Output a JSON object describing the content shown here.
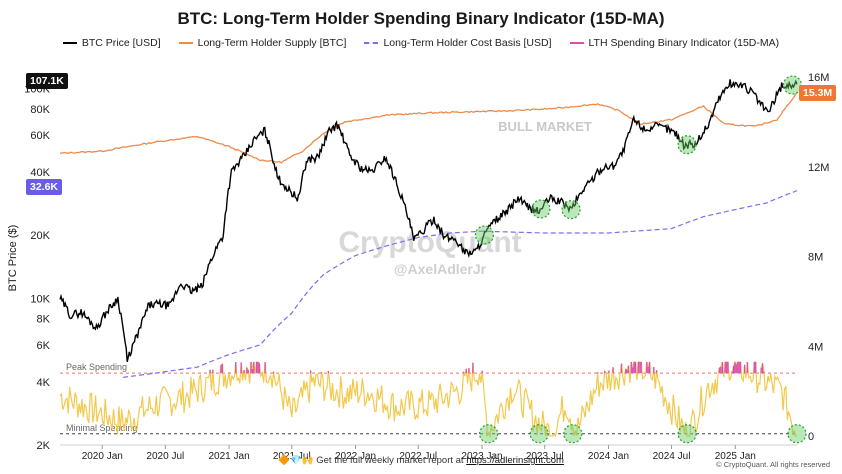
{
  "title": "BTC: Long-Term Holder Spending Binary Indicator (15D-MA)",
  "footer": {
    "emoji": "🔶💎🙌",
    "text": "Get the full weekly market report at",
    "link": "https://adlerinsight.com",
    "copyright": "© CryptoQuant. All rights reserved"
  },
  "watermark": {
    "brand": "CryptoQuant",
    "handle": "@AxelAdlerJr"
  },
  "colors": {
    "price": "#000000",
    "supply": "#ee8a4a",
    "cost_basis": "#7a6ff0",
    "binary": "#f2c94c",
    "binary_peak": "#d94fb0",
    "peak_line": "#e8736b",
    "min_line": "#444444",
    "highlight": "#66cc66",
    "badge_price": "#111111",
    "badge_cost": "#6b5ce7",
    "badge_supply": "#ee7733"
  },
  "chart_data": {
    "type": "line",
    "title": "BTC: Long-Term Holder Spending Binary Indicator (15D-MA)",
    "ylabel": "BTC Price ($)",
    "y_scale": "log",
    "ylim": [
      2000,
      120000
    ],
    "y_ticks": [
      {
        "v": 2000,
        "label": "2K"
      },
      {
        "v": 4000,
        "label": "4K"
      },
      {
        "v": 6000,
        "label": "6K"
      },
      {
        "v": 8000,
        "label": "8K"
      },
      {
        "v": 10000,
        "label": "10K"
      },
      {
        "v": 20000,
        "label": "20K"
      },
      {
        "v": 40000,
        "label": "40K"
      },
      {
        "v": 60000,
        "label": "60K"
      },
      {
        "v": 80000,
        "label": "80K"
      },
      {
        "v": 100000,
        "label": "100K"
      }
    ],
    "y2_ticks": [
      {
        "v": 0,
        "label": "0"
      },
      {
        "v": 4000000,
        "label": "4M"
      },
      {
        "v": 8000000,
        "label": "8M"
      },
      {
        "v": 12000000,
        "label": "12M"
      },
      {
        "v": 16000000,
        "label": "16M"
      }
    ],
    "y2lim": [
      0,
      16000000
    ],
    "xlim": [
      "2019-09-01",
      "2025-07-01"
    ],
    "x_ticks": [
      "2020 Jan",
      "2020 Jul",
      "2021 Jan",
      "2021 Jul",
      "2022 Jan",
      "2022 Jul",
      "2023 Jan",
      "2023 Jul",
      "2024 Jan",
      "2024 Jul",
      "2025 Jan"
    ],
    "x_tick_dates": [
      "2020-01-01",
      "2020-07-01",
      "2021-01-01",
      "2021-07-01",
      "2022-01-01",
      "2022-07-01",
      "2023-01-01",
      "2023-07-01",
      "2024-01-01",
      "2024-07-01",
      "2025-01-01"
    ],
    "annotations": {
      "bull_market": "BULL MARKET",
      "peak": "Peak Spending",
      "minimal": "Minimal Spending"
    },
    "badges": {
      "price": "107.1K",
      "cost_basis": "32.6K",
      "supply": "15.3M"
    },
    "series": [
      {
        "name": "BTC Price [USD]",
        "axis": "left",
        "style": "solid",
        "points": [
          [
            "2019-09-01",
            10000
          ],
          [
            "2019-10-01",
            8300
          ],
          [
            "2019-11-01",
            8600
          ],
          [
            "2019-12-15",
            7200
          ],
          [
            "2020-01-15",
            8700
          ],
          [
            "2020-02-15",
            10000
          ],
          [
            "2020-03-13",
            5000
          ],
          [
            "2020-04-15",
            6900
          ],
          [
            "2020-05-15",
            9300
          ],
          [
            "2020-06-15",
            9400
          ],
          [
            "2020-07-15",
            9200
          ],
          [
            "2020-08-15",
            11800
          ],
          [
            "2020-09-15",
            10800
          ],
          [
            "2020-10-15",
            11400
          ],
          [
            "2020-11-15",
            16000
          ],
          [
            "2020-12-15",
            20000
          ],
          [
            "2021-01-08",
            40000
          ],
          [
            "2021-02-15",
            48000
          ],
          [
            "2021-03-15",
            57000
          ],
          [
            "2021-04-14",
            63000
          ],
          [
            "2021-05-20",
            38000
          ],
          [
            "2021-06-20",
            33000
          ],
          [
            "2021-07-20",
            30000
          ],
          [
            "2021-08-15",
            46000
          ],
          [
            "2021-09-15",
            47000
          ],
          [
            "2021-10-20",
            64000
          ],
          [
            "2021-11-10",
            67000
          ],
          [
            "2021-12-15",
            48000
          ],
          [
            "2022-01-15",
            42000
          ],
          [
            "2022-02-15",
            40000
          ],
          [
            "2022-03-28",
            47000
          ],
          [
            "2022-05-15",
            30000
          ],
          [
            "2022-06-18",
            19000
          ],
          [
            "2022-07-15",
            21000
          ],
          [
            "2022-08-15",
            24000
          ],
          [
            "2022-09-15",
            19500
          ],
          [
            "2022-10-15",
            19200
          ],
          [
            "2022-11-15",
            16500
          ],
          [
            "2022-12-15",
            16800
          ],
          [
            "2023-01-15",
            21000
          ],
          [
            "2023-02-15",
            24000
          ],
          [
            "2023-03-15",
            26000
          ],
          [
            "2023-04-15",
            30000
          ],
          [
            "2023-05-15",
            27000
          ],
          [
            "2023-06-15",
            26000
          ],
          [
            "2023-07-15",
            30000
          ],
          [
            "2023-08-15",
            29000
          ],
          [
            "2023-09-15",
            26500
          ],
          [
            "2023-10-25",
            34000
          ],
          [
            "2023-11-15",
            37000
          ],
          [
            "2023-12-15",
            42000
          ],
          [
            "2024-01-15",
            43000
          ],
          [
            "2024-02-15",
            51000
          ],
          [
            "2024-03-14",
            71000
          ],
          [
            "2024-04-15",
            64000
          ],
          [
            "2024-05-15",
            66000
          ],
          [
            "2024-06-15",
            65000
          ],
          [
            "2024-07-15",
            61000
          ],
          [
            "2024-08-05",
            54000
          ],
          [
            "2024-09-07",
            54000
          ],
          [
            "2024-10-15",
            67000
          ],
          [
            "2024-11-15",
            90000
          ],
          [
            "2024-12-17",
            106000
          ],
          [
            "2025-01-20",
            104000
          ],
          [
            "2025-02-20",
            96000
          ],
          [
            "2025-03-15",
            84000
          ],
          [
            "2025-04-08",
            77000
          ],
          [
            "2025-05-15",
            103000
          ],
          [
            "2025-06-15",
            104000
          ],
          [
            "2025-06-28",
            107100
          ]
        ]
      },
      {
        "name": "Long-Term Holder Supply [BTC]",
        "axis": "right",
        "style": "solid",
        "points": [
          [
            "2019-09-01",
            12600000
          ],
          [
            "2020-01-01",
            12700000
          ],
          [
            "2020-06-01",
            13100000
          ],
          [
            "2020-10-01",
            13350000
          ],
          [
            "2021-01-01",
            12900000
          ],
          [
            "2021-04-01",
            12300000
          ],
          [
            "2021-06-01",
            12200000
          ],
          [
            "2021-08-01",
            12700000
          ],
          [
            "2021-10-01",
            13500000
          ],
          [
            "2021-12-01",
            14000000
          ],
          [
            "2022-04-01",
            14300000
          ],
          [
            "2022-08-01",
            14400000
          ],
          [
            "2022-12-01",
            14450000
          ],
          [
            "2023-04-01",
            14500000
          ],
          [
            "2023-08-01",
            14600000
          ],
          [
            "2023-12-01",
            14800000
          ],
          [
            "2024-02-01",
            14500000
          ],
          [
            "2024-04-01",
            13900000
          ],
          [
            "2024-07-01",
            14100000
          ],
          [
            "2024-10-01",
            14700000
          ],
          [
            "2024-12-01",
            13900000
          ],
          [
            "2025-03-01",
            13800000
          ],
          [
            "2025-05-01",
            14100000
          ],
          [
            "2025-06-28",
            15300000
          ]
        ]
      },
      {
        "name": "Long-Term Holder Cost Basis [USD]",
        "axis": "left",
        "style": "dashed",
        "points": [
          [
            "2020-03-01",
            4200
          ],
          [
            "2020-06-01",
            4400
          ],
          [
            "2020-10-01",
            4700
          ],
          [
            "2021-01-01",
            5400
          ],
          [
            "2021-04-01",
            6000
          ],
          [
            "2021-07-01",
            8500
          ],
          [
            "2021-10-01",
            13000
          ],
          [
            "2022-01-01",
            16000
          ],
          [
            "2022-04-01",
            17800
          ],
          [
            "2022-07-01",
            19500
          ],
          [
            "2022-10-01",
            20500
          ],
          [
            "2023-01-01",
            20900
          ],
          [
            "2023-07-01",
            20500
          ],
          [
            "2024-01-01",
            20500
          ],
          [
            "2024-07-01",
            21500
          ],
          [
            "2024-10-01",
            24500
          ],
          [
            "2025-01-01",
            26500
          ],
          [
            "2025-04-01",
            28500
          ],
          [
            "2025-06-28",
            32600
          ]
        ]
      },
      {
        "name": "LTH Spending Binary Indicator (15D-MA)",
        "axis": "right",
        "style": "solid",
        "points": [
          [
            "2019-09-01",
            1800000
          ],
          [
            "2019-12-01",
            1200000
          ],
          [
            "2020-03-01",
            600000
          ],
          [
            "2020-06-01",
            1400000
          ],
          [
            "2020-09-01",
            1800000
          ],
          [
            "2020-12-01",
            2600000
          ],
          [
            "2021-02-01",
            3100000
          ],
          [
            "2021-05-01",
            3000000
          ],
          [
            "2021-07-01",
            900000
          ],
          [
            "2021-09-01",
            2400000
          ],
          [
            "2021-12-01",
            1900000
          ],
          [
            "2022-02-01",
            2000000
          ],
          [
            "2022-05-01",
            1300000
          ],
          [
            "2022-08-01",
            1400000
          ],
          [
            "2022-11-01",
            2100000
          ],
          [
            "2022-12-25",
            3000000
          ],
          [
            "2023-01-20",
            200000
          ],
          [
            "2023-04-01",
            2200000
          ],
          [
            "2023-06-01",
            800000
          ],
          [
            "2023-07-20",
            100000
          ],
          [
            "2023-09-01",
            1500000
          ],
          [
            "2023-10-01",
            200000
          ],
          [
            "2023-12-01",
            2300000
          ],
          [
            "2024-03-15",
            3200000
          ],
          [
            "2024-05-15",
            2600000
          ],
          [
            "2024-08-15",
            0
          ],
          [
            "2024-10-15",
            2200000
          ],
          [
            "2024-12-15",
            3200000
          ],
          [
            "2025-03-01",
            2700000
          ],
          [
            "2025-05-15",
            2000000
          ],
          [
            "2025-06-28",
            100000
          ]
        ]
      }
    ],
    "peak_level": 2800000,
    "minimal_level": 100000,
    "highlight_dates": [
      {
        "date": "2023-01-08",
        "series": "price"
      },
      {
        "date": "2023-06-20",
        "series": "price"
      },
      {
        "date": "2023-09-15",
        "series": "price"
      },
      {
        "date": "2024-08-15",
        "series": "price"
      },
      {
        "date": "2025-06-15",
        "series": "price"
      },
      {
        "date": "2023-01-20",
        "series": "binary"
      },
      {
        "date": "2023-06-15",
        "series": "binary"
      },
      {
        "date": "2023-09-20",
        "series": "binary"
      },
      {
        "date": "2024-08-15",
        "series": "binary"
      },
      {
        "date": "2025-06-28",
        "series": "binary"
      }
    ]
  }
}
